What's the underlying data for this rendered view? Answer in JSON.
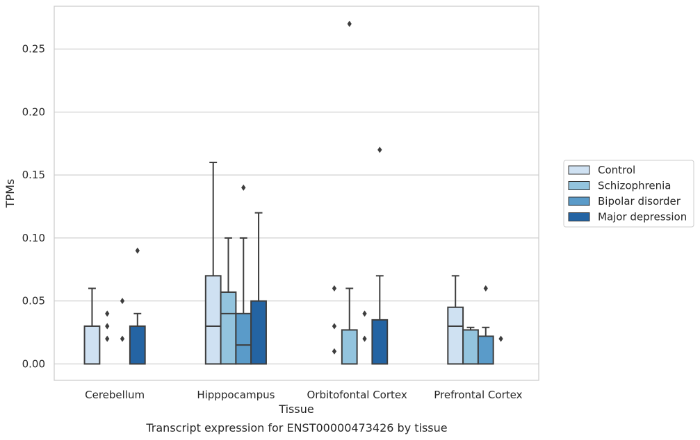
{
  "chart_data": {
    "type": "box",
    "caption": "Transcript expression for ENST00000473426 by tissue",
    "xlabel": "Tissue",
    "ylabel": "TPMs",
    "ylim": [
      -0.013,
      0.284
    ],
    "yticks": [
      0.0,
      0.05,
      0.1,
      0.15,
      0.2,
      0.25
    ],
    "ytick_labels": [
      "0.00",
      "0.05",
      "0.10",
      "0.15",
      "0.20",
      "0.25"
    ],
    "grid": "horizontal",
    "legend_position": "right",
    "categories": [
      "Cerebellum",
      "Hipppocampus",
      "Orbitofontal Cortex",
      "Prefrontal Cortex"
    ],
    "series": [
      {
        "name": "Control",
        "color": "#cfe1f2",
        "boxes": [
          {
            "q1": 0.0,
            "median": 0.0,
            "q3": 0.03,
            "whisker_low": 0.0,
            "whisker_high": 0.06,
            "outliers": []
          },
          {
            "q1": 0.0,
            "median": 0.03,
            "q3": 0.07,
            "whisker_low": 0.0,
            "whisker_high": 0.16,
            "outliers": []
          },
          {
            "q1": 0.0,
            "median": 0.0,
            "q3": 0.0,
            "whisker_low": 0.0,
            "whisker_high": 0.0,
            "outliers": [
              0.01,
              0.03,
              0.06
            ]
          },
          {
            "q1": 0.0,
            "median": 0.03,
            "q3": 0.045,
            "whisker_low": 0.0,
            "whisker_high": 0.07,
            "outliers": []
          }
        ]
      },
      {
        "name": "Schizophrenia",
        "color": "#93c4de",
        "boxes": [
          {
            "q1": 0.0,
            "median": 0.0,
            "q3": 0.0,
            "whisker_low": 0.0,
            "whisker_high": 0.0,
            "outliers": [
              0.02,
              0.03,
              0.04
            ]
          },
          {
            "q1": 0.0,
            "median": 0.04,
            "q3": 0.057,
            "whisker_low": 0.0,
            "whisker_high": 0.1,
            "outliers": []
          },
          {
            "q1": 0.0,
            "median": 0.0,
            "q3": 0.027,
            "whisker_low": 0.0,
            "whisker_high": 0.06,
            "outliers": [
              0.27
            ]
          },
          {
            "q1": 0.0,
            "median": 0.0,
            "q3": 0.027,
            "whisker_low": 0.0,
            "whisker_high": 0.029,
            "outliers": []
          }
        ]
      },
      {
        "name": "Bipolar disorder",
        "color": "#5a9bc9",
        "boxes": [
          {
            "q1": 0.0,
            "median": 0.0,
            "q3": 0.0,
            "whisker_low": 0.0,
            "whisker_high": 0.0,
            "outliers": [
              0.02,
              0.05
            ]
          },
          {
            "q1": 0.0,
            "median": 0.015,
            "q3": 0.04,
            "whisker_low": 0.0,
            "whisker_high": 0.1,
            "outliers": [
              0.14
            ]
          },
          {
            "q1": 0.0,
            "median": 0.0,
            "q3": 0.0,
            "whisker_low": 0.0,
            "whisker_high": 0.0,
            "outliers": [
              0.02,
              0.04
            ]
          },
          {
            "q1": 0.0,
            "median": 0.0,
            "q3": 0.022,
            "whisker_low": 0.0,
            "whisker_high": 0.029,
            "outliers": [
              0.06
            ]
          }
        ]
      },
      {
        "name": "Major depression",
        "color": "#2464a3",
        "boxes": [
          {
            "q1": 0.0,
            "median": 0.0,
            "q3": 0.03,
            "whisker_low": 0.0,
            "whisker_high": 0.04,
            "outliers": [
              0.09
            ]
          },
          {
            "q1": 0.0,
            "median": 0.0,
            "q3": 0.05,
            "whisker_low": 0.0,
            "whisker_high": 0.12,
            "outliers": []
          },
          {
            "q1": 0.0,
            "median": 0.0,
            "q3": 0.035,
            "whisker_low": 0.0,
            "whisker_high": 0.07,
            "outliers": [
              0.17
            ]
          },
          {
            "q1": 0.0,
            "median": 0.0,
            "q3": 0.0,
            "whisker_low": 0.0,
            "whisker_high": 0.0,
            "outliers": [
              0.02
            ]
          }
        ]
      }
    ]
  }
}
